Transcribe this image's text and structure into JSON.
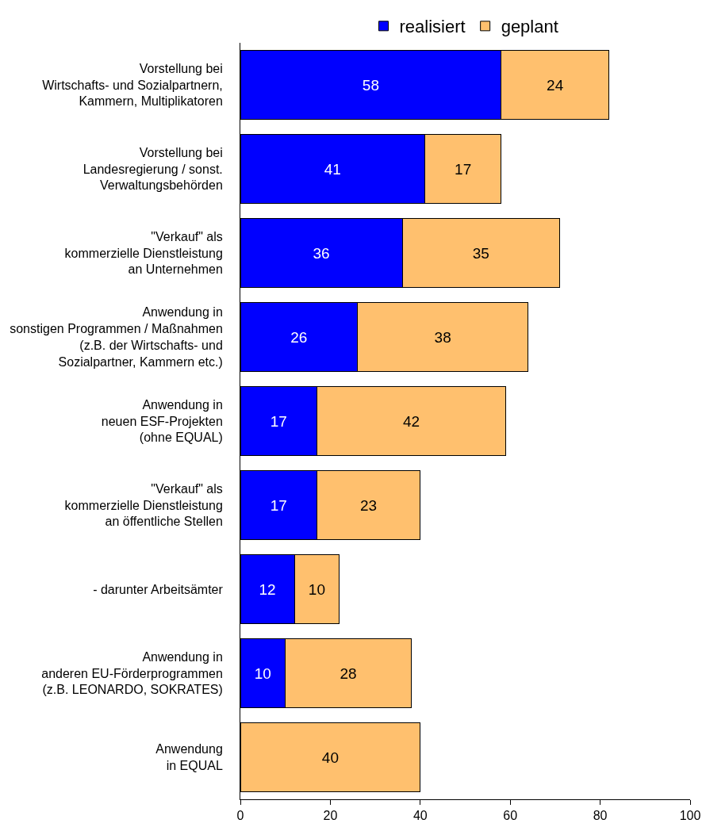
{
  "chart_data": {
    "type": "bar",
    "orientation": "horizontal",
    "stacked": true,
    "legend": "top",
    "grid": false,
    "categories": [
      "Vorstellung bei\nWirtschafts- und Sozialpartnern,\nKammern, Multiplikatoren",
      "Vorstellung bei\nLandesregierung / sonst.\nVerwaltungsbehörden",
      "\"Verkauf\" als\nkommerzielle Dienstleistung\nan Unternehmen",
      "Anwendung in\nsonstigen Programmen / Maßnahmen\n(z.B. der Wirtschafts- und\nSozialpartner, Kammern etc.)",
      "Anwendung in\nneuen ESF-Projekten\n(ohne EQUAL)",
      "\"Verkauf\" als\nkommerzielle Dienstleistung\nan öffentliche Stellen",
      "- darunter Arbeitsämter",
      "Anwendung in\nanderen EU-Förderprogrammen\n(z.B. LEONARDO, SOKRATES)",
      "Anwendung\nin EQUAL"
    ],
    "series": [
      {
        "name": "realisiert",
        "color": "#0000ff",
        "values": [
          58,
          41,
          36,
          26,
          17,
          17,
          12,
          10,
          null
        ],
        "value_labels": [
          "58",
          "41",
          "36",
          "26",
          "17",
          "17",
          "12",
          "10",
          null
        ]
      },
      {
        "name": "geplant",
        "color": "#ffc06e",
        "values": [
          24,
          17,
          35,
          38,
          42,
          23,
          10,
          28,
          40
        ],
        "value_labels": [
          "24",
          "17",
          "35",
          "38",
          "42",
          "23",
          "10",
          "28",
          "40"
        ]
      }
    ],
    "xlim": [
      0,
      100
    ],
    "xticks": [
      0,
      20,
      40,
      60,
      80,
      100
    ]
  }
}
